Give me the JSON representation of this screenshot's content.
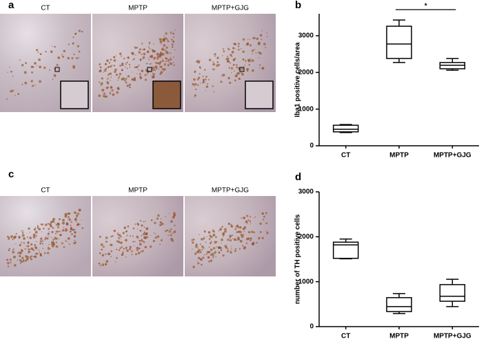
{
  "panels": {
    "a": {
      "label": "a",
      "captions": [
        "CT",
        "MPTP",
        "MPTP+GJG"
      ]
    },
    "c": {
      "label": "c",
      "captions": [
        "CT",
        "MPTP",
        "MPTP+GJG"
      ]
    }
  },
  "chart_data": [
    {
      "type": "box",
      "panel_label": "b",
      "ylabel": "Iba1 positive cells/area",
      "categories": [
        "CT",
        "MPTP",
        "MPTP+GJG"
      ],
      "boxes": [
        {
          "min": 360,
          "q1": 380,
          "median": 450,
          "q3": 560,
          "max": 580
        },
        {
          "min": 2270,
          "q1": 2380,
          "median": 2775,
          "q3": 3260,
          "max": 3430
        },
        {
          "min": 2060,
          "q1": 2100,
          "median": 2195,
          "q3": 2270,
          "max": 2380
        }
      ],
      "ylim": [
        0,
        3600
      ],
      "yticks": [
        0,
        1000,
        2000,
        3000
      ],
      "color": "#000000",
      "annotation": "*"
    },
    {
      "type": "box",
      "panel_label": "d",
      "ylabel": "number of TH positive cells",
      "categories": [
        "CT",
        "MPTP",
        "MPTP+GJG"
      ],
      "boxes": [
        {
          "min": 1510,
          "q1": 1520,
          "median": 1820,
          "q3": 1880,
          "max": 1950
        },
        {
          "min": 290,
          "q1": 335,
          "median": 445,
          "q3": 645,
          "max": 735
        },
        {
          "min": 445,
          "q1": 565,
          "median": 675,
          "q3": 935,
          "max": 1055
        }
      ],
      "ylim": [
        0,
        3000
      ],
      "yticks": [
        0,
        1000,
        2000,
        3000
      ],
      "color": "#000000"
    }
  ]
}
